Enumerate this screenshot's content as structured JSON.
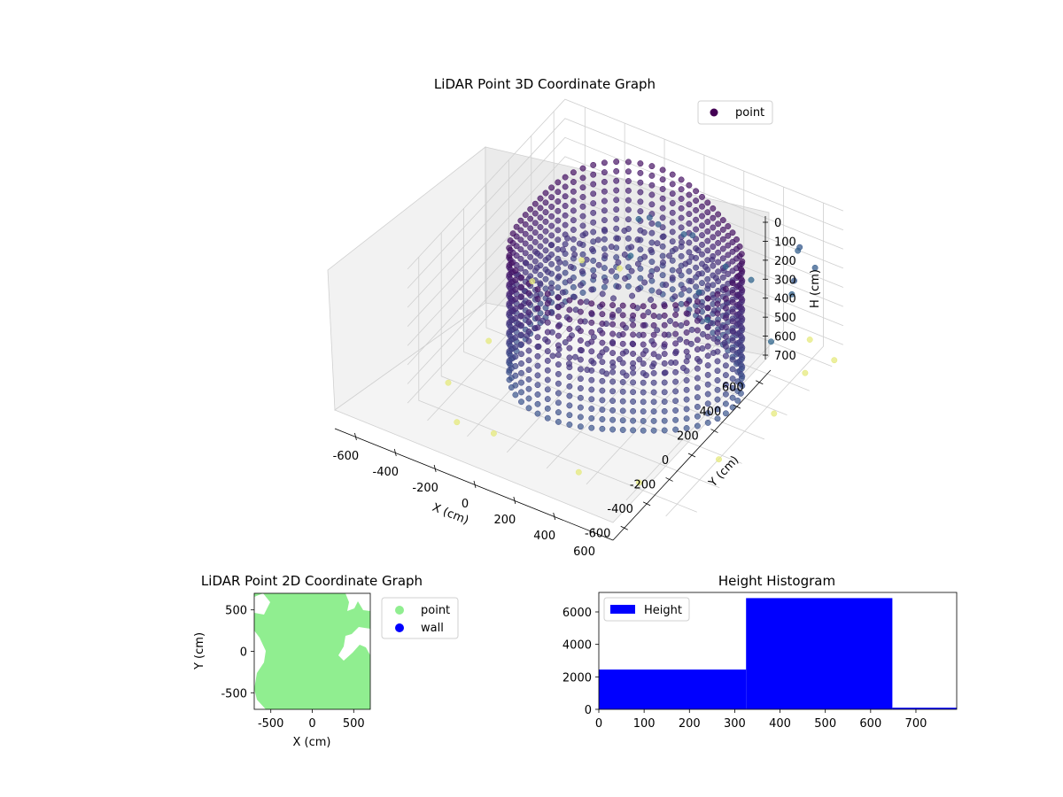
{
  "chart_data": [
    {
      "type": "scatter",
      "title": "LiDAR Point 3D Coordinate Graph",
      "xlabel": "X (cm)",
      "ylabel": "Y (cm)",
      "zlabel": "H (cm)",
      "xlim": [
        -700,
        700
      ],
      "ylim": [
        -700,
        700
      ],
      "zlim": [
        0,
        750
      ],
      "z_inverted": true,
      "x_ticks": [
        "-600",
        "-400",
        "-200",
        "0",
        "200",
        "400",
        "600"
      ],
      "y_ticks": [
        "-600",
        "-400",
        "-200",
        "0",
        "200",
        "400",
        "600"
      ],
      "z_ticks": [
        "0",
        "100",
        "200",
        "300",
        "400",
        "500",
        "600",
        "700"
      ],
      "legend": {
        "placement": "top-right",
        "entries": [
          "point"
        ]
      },
      "colormap": "viridis",
      "grid": true,
      "series": [
        {
          "name": "point",
          "ring_radius": 540,
          "ring_height_range": [
            0,
            650
          ],
          "ring_columns": 64,
          "ring_levels": 14,
          "floor_height": 330,
          "floor_extent": 500,
          "scatter_sample": [
            [
              -650,
              320,
              690
            ],
            [
              -620,
              -480,
              700
            ],
            [
              -560,
              600,
              720
            ],
            [
              -480,
              -650,
              740
            ],
            [
              -300,
              -640,
              730
            ],
            [
              -620,
              -120,
              710
            ],
            [
              -380,
              620,
              700
            ],
            [
              560,
              650,
              700
            ],
            [
              650,
              450,
              710
            ],
            [
              680,
              120,
              700
            ],
            [
              640,
              -300,
              690
            ],
            [
              420,
              -620,
              700
            ],
            [
              150,
              -680,
              720
            ],
            [
              700,
              620,
              730
            ],
            [
              660,
              520,
              200
            ],
            [
              600,
              420,
              300
            ],
            [
              680,
              300,
              120
            ],
            [
              620,
              200,
              400
            ],
            [
              560,
              560,
              160
            ],
            [
              500,
              650,
              260
            ],
            [
              -250,
              560,
              350
            ],
            [
              -150,
              480,
              250
            ],
            [
              0,
              520,
              300
            ],
            [
              100,
              420,
              200
            ],
            [
              -50,
              380,
              180
            ],
            [
              250,
              450,
              320
            ],
            [
              200,
              300,
              380
            ],
            [
              300,
              200,
              420
            ],
            [
              350,
              500,
              380
            ],
            [
              -200,
              400,
              420
            ]
          ]
        }
      ]
    },
    {
      "type": "scatter",
      "title": "LiDAR Point 2D Coordinate Graph",
      "xlabel": "X (cm)",
      "ylabel": "Y (cm)",
      "xlim": [
        -700,
        700
      ],
      "ylim": [
        -700,
        700
      ],
      "x_ticks": [
        "-500",
        "0",
        "500"
      ],
      "y_ticks": [
        "500",
        "0",
        "-500"
      ],
      "legend": {
        "placement": "outside-right",
        "entries": [
          "point",
          "wall"
        ]
      },
      "series": [
        {
          "name": "point",
          "color": "#90ee90"
        },
        {
          "name": "wall",
          "color": "#0000ff"
        }
      ]
    },
    {
      "type": "bar",
      "title": "Height Histogram",
      "bins": [
        [
          0,
          325
        ],
        [
          325,
          648
        ],
        [
          648,
          790
        ]
      ],
      "values": [
        2450,
        6850,
        100
      ],
      "xlim": [
        0,
        790
      ],
      "ylim": [
        0,
        7200
      ],
      "x_ticks": [
        "0",
        "100",
        "200",
        "300",
        "400",
        "500",
        "600",
        "700"
      ],
      "y_ticks": [
        "0",
        "2000",
        "4000",
        "6000"
      ],
      "legend": {
        "placement": "top-left",
        "entries": [
          "Height"
        ]
      },
      "series": [
        {
          "name": "Height",
          "color": "#0000ff"
        }
      ]
    }
  ]
}
